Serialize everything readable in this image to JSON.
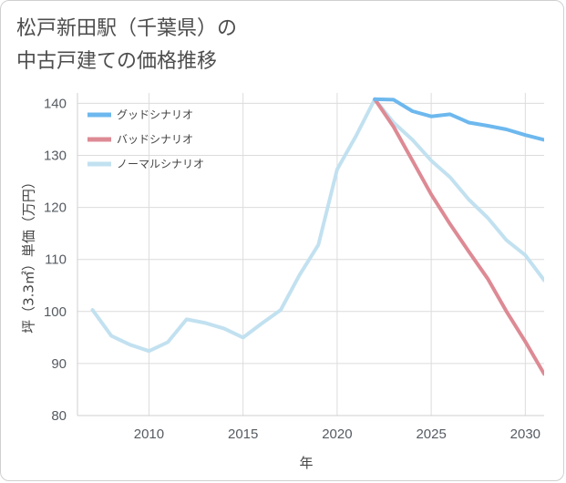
{
  "title": {
    "line1": "松戸新田駅（千葉県）の",
    "line2": "中古戸建ての価格推移"
  },
  "chart_data": {
    "type": "line",
    "xlabel": "年",
    "ylabel": "坪（3.3㎡）単価（万円）",
    "xlim": [
      2006.2,
      2031
    ],
    "ylim": [
      80,
      142
    ],
    "x_ticks": [
      2010,
      2015,
      2020,
      2025,
      2030
    ],
    "y_ticks": [
      80,
      90,
      100,
      110,
      120,
      130,
      140
    ],
    "grid": true,
    "legend_position": "top-left",
    "series": [
      {
        "name": "グッドシナリオ",
        "color": "#6db8ee",
        "x": [
          2022,
          2023,
          2024,
          2025,
          2026,
          2027,
          2028,
          2029,
          2030,
          2031
        ],
        "y": [
          140.8,
          140.7,
          138.5,
          137.5,
          137.9,
          136.3,
          135.7,
          135.0,
          133.9,
          133.0
        ]
      },
      {
        "name": "バッドシナリオ",
        "color": "#dd8a94",
        "x": [
          2022,
          2023,
          2024,
          2025,
          2026,
          2027,
          2028,
          2029,
          2030,
          2031
        ],
        "y": [
          140.8,
          135.5,
          129.0,
          122.5,
          116.8,
          111.5,
          106.3,
          100.0,
          94.2,
          88.0
        ]
      },
      {
        "name": "ノーマルシナリオ",
        "color": "#c2e1f0",
        "x": [
          2007,
          2008,
          2009,
          2010,
          2011,
          2012,
          2013,
          2014,
          2015,
          2016,
          2017,
          2018,
          2019,
          2020,
          2021,
          2022,
          2023,
          2024,
          2025,
          2026,
          2027,
          2028,
          2029,
          2030,
          2031
        ],
        "y": [
          100.3,
          95.3,
          93.6,
          92.4,
          94.1,
          98.5,
          97.8,
          96.7,
          95.0,
          97.7,
          100.3,
          107.0,
          112.8,
          127.3,
          133.7,
          140.8,
          136.3,
          133.0,
          129.0,
          125.8,
          121.5,
          118.0,
          113.7,
          110.8,
          106.0
        ]
      }
    ]
  }
}
